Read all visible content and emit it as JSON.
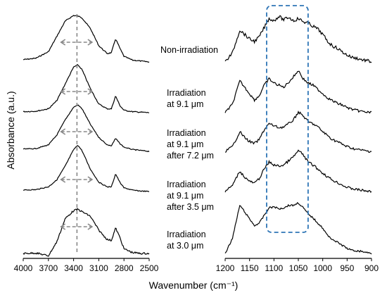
{
  "chart_data": {
    "type": "line",
    "xlabel": "Wavenumber (cm⁻¹)",
    "ylabel": "Absorbance (a.u.)",
    "series_names": [
      [
        "Non-irradiation"
      ],
      [
        "Irradiation",
        "at 9.1 μm"
      ],
      [
        "Irradiation",
        "at 9.1 μm",
        "after 7.2 μm"
      ],
      [
        "Irradiation",
        "at 9.1 μm",
        "after 3.5 μm"
      ],
      [
        "Irradiation",
        "at 3.0 μm"
      ]
    ],
    "panels": [
      {
        "id": "OH-CH region",
        "xlim": [
          4000,
          2500
        ],
        "x_reversed": true,
        "ticks": [
          "4000",
          "3700",
          "3400",
          "3100",
          "2800",
          "2500"
        ],
        "tick_values": [
          4000,
          3700,
          3400,
          3100,
          2800,
          2500
        ],
        "marker_line_x": 3360,
        "peak_width_range": [
          3550,
          3180
        ],
        "x": [
          4000,
          3850,
          3700,
          3600,
          3500,
          3400,
          3350,
          3300,
          3200,
          3100,
          3000,
          2950,
          2900,
          2850,
          2800,
          2700,
          2600,
          2500
        ],
        "series": [
          {
            "values": [
              0.05,
              0.08,
              0.22,
              0.55,
              0.88,
              1.0,
              0.99,
              0.95,
              0.72,
              0.35,
              0.18,
              0.2,
              0.5,
              0.3,
              0.12,
              0.04,
              0.02,
              0.0
            ]
          },
          {
            "values": [
              0.02,
              0.03,
              0.08,
              0.25,
              0.6,
              0.95,
              1.0,
              0.9,
              0.5,
              0.18,
              0.08,
              0.08,
              0.35,
              0.15,
              0.05,
              0.02,
              0.01,
              0.0
            ]
          },
          {
            "values": [
              0.05,
              0.06,
              0.14,
              0.35,
              0.68,
              0.95,
              1.0,
              0.92,
              0.58,
              0.3,
              0.14,
              0.12,
              0.28,
              0.17,
              0.09,
              0.04,
              0.02,
              0.0
            ]
          },
          {
            "values": [
              0.03,
              0.04,
              0.1,
              0.25,
              0.55,
              0.9,
              1.0,
              0.88,
              0.48,
              0.2,
              0.1,
              0.1,
              0.38,
              0.2,
              0.08,
              0.03,
              0.01,
              0.0
            ]
          },
          {
            "values": [
              0.0,
              0.01,
              -0.05,
              0.25,
              0.75,
              0.92,
              0.95,
              0.9,
              0.8,
              0.5,
              0.3,
              0.28,
              0.55,
              0.35,
              0.1,
              0.02,
              0.0,
              0.0
            ]
          }
        ]
      },
      {
        "id": "fingerprint region",
        "xlim": [
          1200,
          900
        ],
        "x_reversed": true,
        "ticks": [
          "1200",
          "1150",
          "1100",
          "1050",
          "1000",
          "950",
          "900"
        ],
        "tick_values": [
          1200,
          1150,
          1100,
          1050,
          1000,
          950,
          900
        ],
        "highlight_box": [
          1115,
          1030
        ],
        "x": [
          1200,
          1185,
          1170,
          1160,
          1150,
          1140,
          1130,
          1120,
          1110,
          1100,
          1090,
          1080,
          1070,
          1060,
          1050,
          1040,
          1030,
          1020,
          1010,
          1000,
          990,
          980,
          970,
          960,
          950,
          940,
          930,
          920,
          910,
          900
        ],
        "series": [
          {
            "values": [
              0.0,
              0.2,
              0.7,
              0.6,
              0.5,
              0.45,
              0.55,
              0.75,
              0.95,
              0.9,
              1.0,
              0.92,
              0.98,
              0.9,
              0.95,
              0.88,
              0.85,
              0.78,
              0.72,
              0.6,
              0.45,
              0.35,
              0.3,
              0.22,
              0.15,
              0.1,
              0.08,
              0.05,
              0.03,
              0.0
            ]
          },
          {
            "values": [
              0.0,
              0.2,
              0.75,
              0.6,
              0.45,
              0.3,
              0.4,
              0.65,
              0.8,
              0.7,
              0.65,
              0.6,
              0.72,
              0.85,
              1.0,
              0.8,
              0.7,
              0.65,
              0.55,
              0.45,
              0.35,
              0.28,
              0.22,
              0.18,
              0.12,
              0.08,
              0.05,
              0.03,
              0.01,
              0.0
            ]
          },
          {
            "values": [
              0.0,
              0.12,
              0.5,
              0.35,
              0.25,
              0.2,
              0.3,
              0.55,
              0.7,
              0.65,
              0.6,
              0.62,
              0.7,
              0.8,
              1.0,
              0.9,
              0.75,
              0.7,
              0.62,
              0.5,
              0.4,
              0.3,
              0.25,
              0.18,
              0.12,
              0.08,
              0.05,
              0.03,
              0.01,
              0.0
            ]
          },
          {
            "values": [
              0.0,
              0.15,
              0.5,
              0.35,
              0.25,
              0.2,
              0.32,
              0.55,
              0.72,
              0.65,
              0.62,
              0.65,
              0.75,
              0.85,
              1.0,
              0.9,
              0.72,
              0.65,
              0.55,
              0.45,
              0.36,
              0.28,
              0.22,
              0.16,
              0.1,
              0.07,
              0.05,
              0.03,
              0.01,
              0.0
            ]
          },
          {
            "values": [
              0.0,
              0.3,
              0.95,
              0.82,
              0.68,
              0.55,
              0.6,
              0.75,
              0.9,
              0.92,
              0.88,
              0.9,
              0.95,
              0.95,
              1.0,
              0.9,
              0.78,
              0.7,
              0.6,
              0.5,
              0.35,
              0.28,
              0.22,
              0.16,
              0.1,
              0.06,
              0.05,
              0.04,
              0.02,
              0.0
            ]
          }
        ]
      }
    ]
  }
}
